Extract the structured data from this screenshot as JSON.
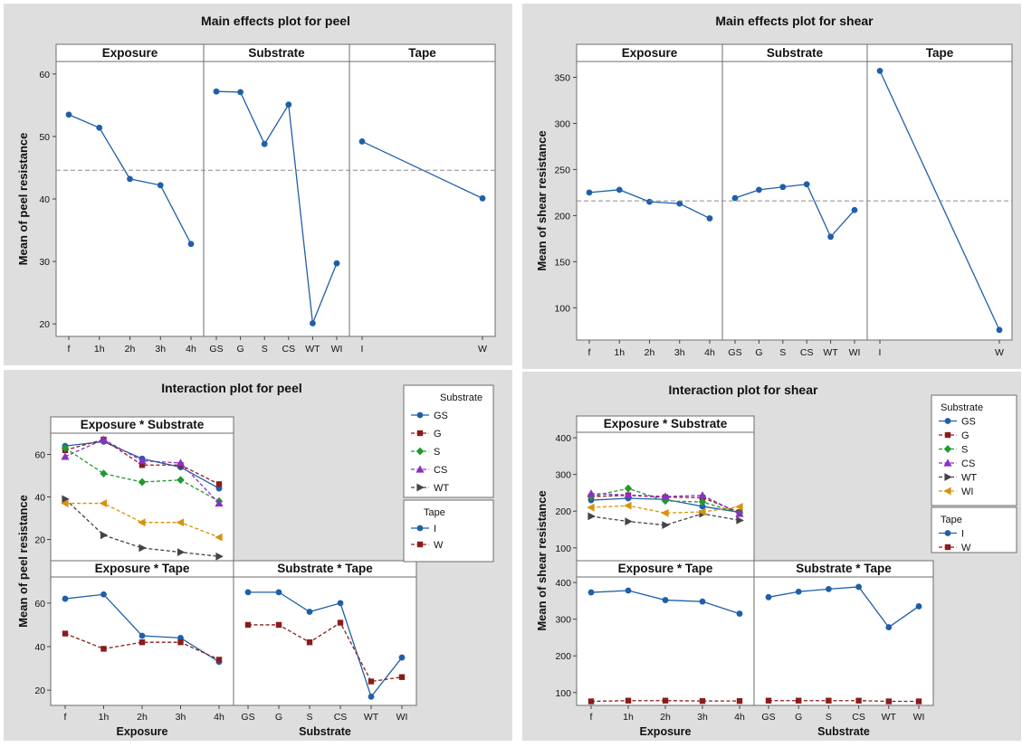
{
  "colors": {
    "blue": "#1f5fa8",
    "red": "#8b1c1c",
    "green": "#1e9a2e",
    "purple": "#8a2fc7",
    "gray": "#444444",
    "orange": "#d9920c",
    "ref": "#8a8a8a"
  },
  "chart_data": [
    {
      "type": "line",
      "title": "Main effects plot for peel",
      "ylabel": "Mean of peel resistance",
      "ylim": [
        18,
        62
      ],
      "yticks": [
        20,
        30,
        40,
        50,
        60
      ],
      "reference_mean": 44.6,
      "facets": [
        {
          "label": "Exposure",
          "categories": [
            "f",
            "1h",
            "2h",
            "3h",
            "4h"
          ],
          "values": [
            53.5,
            51.4,
            43.2,
            42.2,
            32.8
          ]
        },
        {
          "label": "Substrate",
          "categories": [
            "GS",
            "G",
            "S",
            "CS",
            "WT",
            "WI"
          ],
          "values": [
            57.2,
            57.1,
            48.8,
            55.1,
            20.1,
            29.7
          ]
        },
        {
          "label": "Tape",
          "categories": [
            "I",
            "W"
          ],
          "values": [
            49.2,
            40.1
          ]
        }
      ]
    },
    {
      "type": "line",
      "title": "Main effects plot for shear",
      "ylabel": "Mean of shear resistance",
      "ylim": [
        65,
        375
      ],
      "yticks": [
        100,
        150,
        200,
        250,
        300,
        350
      ],
      "reference_mean": 216,
      "facets": [
        {
          "label": "Exposure",
          "categories": [
            "f",
            "1h",
            "2h",
            "3h",
            "4h"
          ],
          "values": [
            225,
            228,
            215,
            213,
            197
          ]
        },
        {
          "label": "Substrate",
          "categories": [
            "GS",
            "G",
            "S",
            "CS",
            "WT",
            "WI"
          ],
          "values": [
            219,
            228,
            231,
            234,
            177,
            206
          ]
        },
        {
          "label": "Tape",
          "categories": [
            "I",
            "W"
          ],
          "values": [
            357,
            76
          ]
        }
      ]
    },
    {
      "type": "line",
      "title": "Interaction plot for peel",
      "ylabel": "Mean of peel resistance",
      "legend": [
        {
          "title": "Substrate",
          "entries": [
            {
              "label": "GS",
              "color": "blue",
              "marker": "circle"
            },
            {
              "label": "G",
              "color": "red",
              "marker": "square"
            },
            {
              "label": "S",
              "color": "green",
              "marker": "diamond"
            },
            {
              "label": "CS",
              "color": "purple",
              "marker": "triangle"
            },
            {
              "label": "WT",
              "color": "gray",
              "marker": "arrow"
            }
          ]
        },
        {
          "title": "Tape",
          "entries": [
            {
              "label": "I",
              "color": "blue",
              "marker": "circle"
            },
            {
              "label": "W",
              "color": "red",
              "marker": "square"
            }
          ]
        }
      ],
      "panels": [
        {
          "label": "Exposure * Substrate",
          "categories": [
            "f",
            "1h",
            "2h",
            "3h",
            "4h"
          ],
          "ylim": [
            10,
            70
          ],
          "yticks": [
            20,
            40,
            60
          ],
          "series": [
            {
              "name": "GS",
              "color": "blue",
              "marker": "circle",
              "values": [
                64,
                66,
                58,
                54,
                44
              ]
            },
            {
              "name": "G",
              "color": "red",
              "marker": "square",
              "values": [
                62,
                67,
                55,
                55,
                46
              ]
            },
            {
              "name": "S",
              "color": "green",
              "marker": "diamond",
              "values": [
                63,
                51,
                47,
                48,
                38
              ]
            },
            {
              "name": "CS",
              "color": "purple",
              "marker": "triangle",
              "values": [
                59,
                67,
                57,
                56,
                37
              ]
            },
            {
              "name": "WT",
              "color": "gray",
              "marker": "arrow",
              "values": [
                39,
                22,
                16,
                14,
                12
              ]
            },
            {
              "name": "WI",
              "color": "orange",
              "marker": "arrowleft",
              "values": [
                37,
                37,
                28,
                28,
                21
              ]
            }
          ]
        },
        {
          "label": "Exposure * Tape",
          "xlabel": "Exposure",
          "categories": [
            "f",
            "1h",
            "2h",
            "3h",
            "4h"
          ],
          "ylim": [
            13,
            72
          ],
          "yticks": [
            20,
            40,
            60
          ],
          "series": [
            {
              "name": "I",
              "color": "blue",
              "marker": "circle",
              "values": [
                62,
                64,
                45,
                44,
                33
              ]
            },
            {
              "name": "W",
              "color": "red",
              "marker": "square",
              "values": [
                46,
                39,
                42,
                42,
                34
              ]
            }
          ]
        },
        {
          "label": "Substrate * Tape",
          "xlabel": "Substrate",
          "categories": [
            "GS",
            "G",
            "S",
            "CS",
            "WT",
            "WI"
          ],
          "ylim": [
            13,
            72
          ],
          "yticks": [],
          "series": [
            {
              "name": "I",
              "color": "blue",
              "marker": "circle",
              "values": [
                65,
                65,
                56,
                60,
                17,
                35
              ]
            },
            {
              "name": "W",
              "color": "red",
              "marker": "square",
              "values": [
                50,
                50,
                42,
                51,
                24,
                26
              ]
            }
          ]
        }
      ]
    },
    {
      "type": "line",
      "title": "Interaction plot for shear",
      "ylabel": "Mean of shear resistance",
      "legend": [
        {
          "title": "Substrate",
          "entries": [
            {
              "label": "GS",
              "color": "blue",
              "marker": "circle"
            },
            {
              "label": "G",
              "color": "red",
              "marker": "square"
            },
            {
              "label": "S",
              "color": "green",
              "marker": "diamond"
            },
            {
              "label": "CS",
              "color": "purple",
              "marker": "triangle"
            },
            {
              "label": "WT",
              "color": "gray",
              "marker": "arrow"
            },
            {
              "label": "WI",
              "color": "orange",
              "marker": "arrowleft"
            }
          ]
        },
        {
          "title": "Tape",
          "entries": [
            {
              "label": "I",
              "color": "blue",
              "marker": "circle"
            },
            {
              "label": "W",
              "color": "red",
              "marker": "square"
            }
          ]
        }
      ],
      "panels": [
        {
          "label": "Exposure * Substrate",
          "categories": [
            "f",
            "1h",
            "2h",
            "3h",
            "4h"
          ],
          "ylim": [
            65,
            415
          ],
          "yticks": [
            100,
            200,
            300,
            400
          ],
          "series": [
            {
              "name": "GS",
              "color": "blue",
              "marker": "circle",
              "values": [
                230,
                235,
                232,
                213,
                197
              ]
            },
            {
              "name": "G",
              "color": "red",
              "marker": "square",
              "values": [
                240,
                243,
                238,
                237,
                197
              ]
            },
            {
              "name": "S",
              "color": "green",
              "marker": "diamond",
              "values": [
                240,
                262,
                228,
                225,
                195
              ]
            },
            {
              "name": "CS",
              "color": "purple",
              "marker": "triangle",
              "values": [
                248,
                244,
                240,
                243,
                193
              ]
            },
            {
              "name": "WT",
              "color": "gray",
              "marker": "arrow",
              "values": [
                186,
                172,
                162,
                193,
                175
              ]
            },
            {
              "name": "WI",
              "color": "orange",
              "marker": "arrowleft",
              "values": [
                210,
                215,
                195,
                198,
                212
              ]
            }
          ]
        },
        {
          "label": "Exposure * Tape",
          "xlabel": "Exposure",
          "categories": [
            "f",
            "1h",
            "2h",
            "3h",
            "4h"
          ],
          "ylim": [
            65,
            415
          ],
          "yticks": [
            100,
            200,
            300,
            400
          ],
          "series": [
            {
              "name": "I",
              "color": "blue",
              "marker": "circle",
              "values": [
                373,
                378,
                352,
                348,
                315
              ]
            },
            {
              "name": "W",
              "color": "red",
              "marker": "square",
              "values": [
                76,
                78,
                78,
                77,
                77
              ]
            }
          ]
        },
        {
          "label": "Substrate * Tape",
          "xlabel": "Substrate",
          "categories": [
            "GS",
            "G",
            "S",
            "CS",
            "WT",
            "WI"
          ],
          "ylim": [
            65,
            415
          ],
          "yticks": [],
          "series": [
            {
              "name": "I",
              "color": "blue",
              "marker": "circle",
              "values": [
                360,
                375,
                382,
                388,
                278,
                335
              ]
            },
            {
              "name": "W",
              "color": "red",
              "marker": "square",
              "values": [
                78,
                78,
                78,
                78,
                76,
                76
              ]
            }
          ]
        }
      ]
    }
  ]
}
